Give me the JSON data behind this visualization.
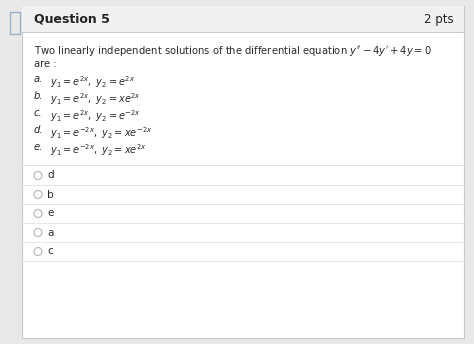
{
  "title": "Question 5",
  "pts": "2 pts",
  "question_text": "Two linearly independent solutions of the differential equation $y'' - 4y' + 4y = 0$",
  "are_text": "are :",
  "option_labels": [
    "a.",
    "b.",
    "c.",
    "d.",
    "e."
  ],
  "option_math": [
    "$y_1 = e^{2x},\\ y_2 = e^{2x}$",
    "$y_1 = e^{2x},\\ y_2 = xe^{2x}$",
    "$y_1 = e^{2x},\\ y_2 = e^{-2x}$",
    "$y_1 = e^{-2x},\\ y_2 = xe^{-2x}$",
    "$y_1 = e^{-2x},\\ y_2 = xe^{2x}$"
  ],
  "answer_choices": [
    "d",
    "b",
    "e",
    "a",
    "c"
  ],
  "bg_color": "#ffffff",
  "page_bg": "#e8e8e8",
  "header_bg": "#f0f0f0",
  "border_color": "#c8c8c8",
  "text_color": "#2a2a2a",
  "radio_color": "#bbbbbb",
  "separator_color": "#e0e0e0",
  "left_accent_color": "#9ab0c8",
  "header_text_color": "#222222"
}
